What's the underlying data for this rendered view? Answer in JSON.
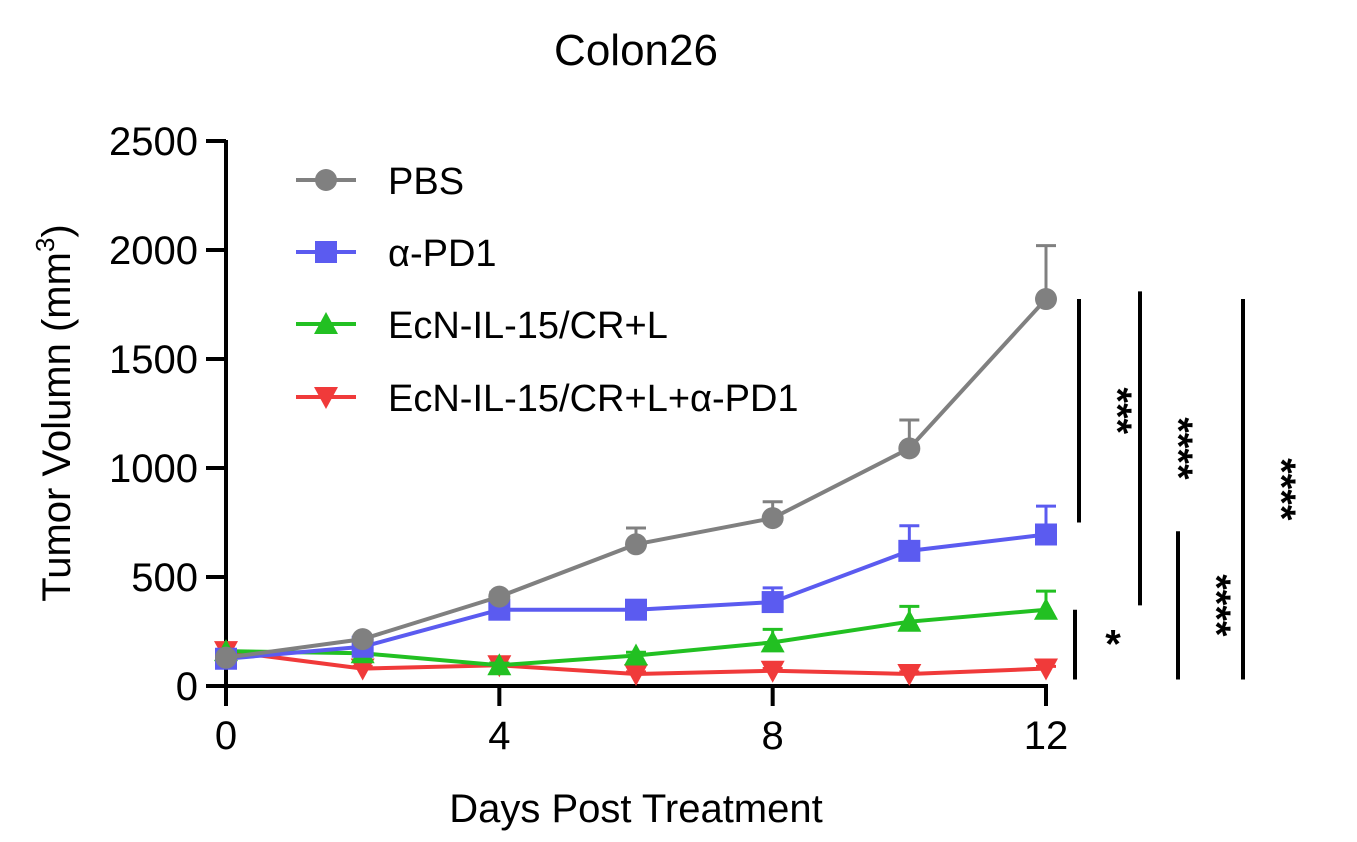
{
  "chart_data": {
    "type": "line",
    "title": "Colon26",
    "xlabel": "Days Post Treatment",
    "ylabel": "Tumor Volumn (mm",
    "ylabel_superscript": "3",
    "ylabel_close": ")",
    "xlim": [
      0,
      12
    ],
    "ylim": [
      0,
      2500
    ],
    "x_ticks": [
      0,
      4,
      8,
      12
    ],
    "y_ticks": [
      0,
      500,
      1000,
      1500,
      2000,
      2500
    ],
    "grid": false,
    "legend_position": "top-left",
    "series": [
      {
        "name": "PBS",
        "color": "#808080",
        "marker": "circle",
        "x": [
          0,
          2,
          4,
          6,
          8,
          10,
          12
        ],
        "y": [
          130,
          215,
          410,
          650,
          770,
          1090,
          1775
        ],
        "error": [
          0,
          15,
          20,
          75,
          75,
          130,
          245
        ]
      },
      {
        "name": "α-PD1",
        "color": "#5b5bf0",
        "marker": "square",
        "x": [
          0,
          2,
          4,
          6,
          8,
          10,
          12
        ],
        "y": [
          125,
          180,
          350,
          350,
          385,
          620,
          695
        ],
        "error": [
          0,
          20,
          20,
          20,
          65,
          115,
          130
        ]
      },
      {
        "name": "EcN-IL-15/CR+L",
        "color": "#22c022",
        "marker": "triangle-up",
        "x": [
          0,
          2,
          4,
          6,
          8,
          10,
          12
        ],
        "y": [
          160,
          150,
          95,
          140,
          200,
          295,
          350
        ],
        "error": [
          0,
          15,
          10,
          15,
          60,
          70,
          85
        ]
      },
      {
        "name": "EcN-IL-15/CR+L+α-PD1",
        "color": "#f03a3a",
        "marker": "triangle-down",
        "x": [
          0,
          2,
          4,
          6,
          8,
          10,
          12
        ],
        "y": [
          160,
          80,
          95,
          55,
          70,
          55,
          80
        ],
        "error": [
          0,
          10,
          10,
          10,
          10,
          10,
          10
        ]
      }
    ],
    "significance": [
      {
        "label": "***",
        "y_from": 1775,
        "y_to": 750
      },
      {
        "label": "****",
        "y_from": 1810,
        "y_to": 370
      },
      {
        "label": "*",
        "y_from": 350,
        "y_to": 30
      },
      {
        "label": "****",
        "y_from": 710,
        "y_to": 30
      },
      {
        "label": "****",
        "y_from": 1775,
        "y_to": 30
      }
    ]
  }
}
